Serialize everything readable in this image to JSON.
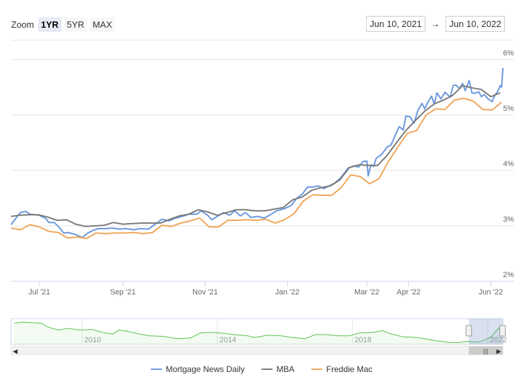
{
  "toolbar": {
    "zoom_label": "Zoom",
    "buttons": [
      "1YR",
      "5YR",
      "MAX"
    ],
    "active": "1YR"
  },
  "range": {
    "from": "Jun 10, 2021",
    "separator": "→",
    "to": "Jun 10, 2022"
  },
  "colors": {
    "mnd": "#6a97dd",
    "mba": "#7a7a7a",
    "freddie": "#f0a65a",
    "navigator": "#58c24b"
  },
  "chart_data": {
    "type": "line",
    "title": "",
    "xlabel": "",
    "ylabel": "",
    "xlim": [
      "2021-06-10",
      "2022-06-10"
    ],
    "ylim": [
      2,
      6.35
    ],
    "x_ticks": [
      {
        "date": "2021-07-01",
        "label": "Jul '21"
      },
      {
        "date": "2021-09-01",
        "label": "Sep '21"
      },
      {
        "date": "2021-11-01",
        "label": "Nov '21"
      },
      {
        "date": "2022-01-01",
        "label": "Jan '22"
      },
      {
        "date": "2022-03-01",
        "label": "Mar '22"
      },
      {
        "date": "2022-04-01",
        "label": "Apr '22"
      },
      {
        "date": "2022-06-01",
        "label": "Jun '22"
      }
    ],
    "y_ticks": [
      {
        "value": 2,
        "label": "2%"
      },
      {
        "value": 3,
        "label": "3%"
      },
      {
        "value": 4,
        "label": "4%"
      },
      {
        "value": 5,
        "label": "5%"
      },
      {
        "value": 6,
        "label": "6%"
      }
    ],
    "grid": true,
    "legend_position": "bottom",
    "series": [
      {
        "name": "Mortgage News Daily",
        "color_key": "mnd",
        "points": [
          [
            "2021-06-10",
            3.02
          ],
          [
            "2021-06-14",
            3.15
          ],
          [
            "2021-06-17",
            3.24
          ],
          [
            "2021-06-21",
            3.26
          ],
          [
            "2021-06-24",
            3.21
          ],
          [
            "2021-06-28",
            3.2
          ],
          [
            "2021-07-01",
            3.19
          ],
          [
            "2021-07-06",
            3.13
          ],
          [
            "2021-07-08",
            3.06
          ],
          [
            "2021-07-12",
            3.06
          ],
          [
            "2021-07-15",
            2.99
          ],
          [
            "2021-07-19",
            2.87
          ],
          [
            "2021-07-22",
            2.88
          ],
          [
            "2021-07-27",
            2.85
          ],
          [
            "2021-08-02",
            2.79
          ],
          [
            "2021-08-06",
            2.87
          ],
          [
            "2021-08-10",
            2.92
          ],
          [
            "2021-08-14",
            2.95
          ],
          [
            "2021-08-19",
            2.95
          ],
          [
            "2021-08-24",
            2.96
          ],
          [
            "2021-08-30",
            2.94
          ],
          [
            "2021-09-03",
            2.95
          ],
          [
            "2021-09-09",
            2.93
          ],
          [
            "2021-09-14",
            2.95
          ],
          [
            "2021-09-20",
            2.94
          ],
          [
            "2021-09-25",
            3.03
          ],
          [
            "2021-09-30",
            3.12
          ],
          [
            "2021-10-05",
            3.09
          ],
          [
            "2021-10-10",
            3.14
          ],
          [
            "2021-10-15",
            3.17
          ],
          [
            "2021-10-20",
            3.21
          ],
          [
            "2021-10-26",
            3.21
          ],
          [
            "2021-10-29",
            3.27
          ],
          [
            "2021-11-03",
            3.19
          ],
          [
            "2021-11-06",
            3.11
          ],
          [
            "2021-11-10",
            3.17
          ],
          [
            "2021-11-15",
            3.24
          ],
          [
            "2021-11-19",
            3.19
          ],
          [
            "2021-11-23",
            3.27
          ],
          [
            "2021-11-27",
            3.18
          ],
          [
            "2021-12-01",
            3.24
          ],
          [
            "2021-12-05",
            3.15
          ],
          [
            "2021-12-10",
            3.17
          ],
          [
            "2021-12-15",
            3.14
          ],
          [
            "2021-12-20",
            3.21
          ],
          [
            "2021-12-24",
            3.27
          ],
          [
            "2021-12-30",
            3.31
          ],
          [
            "2022-01-04",
            3.37
          ],
          [
            "2022-01-08",
            3.5
          ],
          [
            "2022-01-12",
            3.57
          ],
          [
            "2022-01-16",
            3.7
          ],
          [
            "2022-01-20",
            3.7
          ],
          [
            "2022-01-24",
            3.72
          ],
          [
            "2022-01-28",
            3.67
          ],
          [
            "2022-02-01",
            3.72
          ],
          [
            "2022-02-05",
            3.77
          ],
          [
            "2022-02-09",
            3.85
          ],
          [
            "2022-02-12",
            3.94
          ],
          [
            "2022-02-15",
            4.04
          ],
          [
            "2022-02-19",
            4.08
          ],
          [
            "2022-02-23",
            4.06
          ],
          [
            "2022-02-26",
            4.16
          ],
          [
            "2022-03-01",
            4.17
          ],
          [
            "2022-03-02",
            3.9
          ],
          [
            "2022-03-04",
            4.1
          ],
          [
            "2022-03-06",
            4.07
          ],
          [
            "2022-03-08",
            4.22
          ],
          [
            "2022-03-12",
            4.29
          ],
          [
            "2022-03-16",
            4.42
          ],
          [
            "2022-03-19",
            4.46
          ],
          [
            "2022-03-22",
            4.63
          ],
          [
            "2022-03-25",
            4.79
          ],
          [
            "2022-03-28",
            4.73
          ],
          [
            "2022-03-30",
            4.98
          ],
          [
            "2022-04-02",
            4.97
          ],
          [
            "2022-04-05",
            4.85
          ],
          [
            "2022-04-08",
            5.09
          ],
          [
            "2022-04-11",
            5.21
          ],
          [
            "2022-04-13",
            5.11
          ],
          [
            "2022-04-15",
            5.22
          ],
          [
            "2022-04-18",
            5.34
          ],
          [
            "2022-04-20",
            5.2
          ],
          [
            "2022-04-22",
            5.4
          ],
          [
            "2022-04-25",
            5.29
          ],
          [
            "2022-04-28",
            5.41
          ],
          [
            "2022-05-02",
            5.32
          ],
          [
            "2022-05-04",
            5.53
          ],
          [
            "2022-05-06",
            5.54
          ],
          [
            "2022-05-09",
            5.48
          ],
          [
            "2022-05-11",
            5.57
          ],
          [
            "2022-05-13",
            5.44
          ],
          [
            "2022-05-16",
            5.62
          ],
          [
            "2022-05-18",
            5.4
          ],
          [
            "2022-05-20",
            5.39
          ],
          [
            "2022-05-23",
            5.42
          ],
          [
            "2022-05-25",
            5.33
          ],
          [
            "2022-05-27",
            5.37
          ],
          [
            "2022-05-30",
            5.29
          ],
          [
            "2022-06-02",
            5.24
          ],
          [
            "2022-06-04",
            5.36
          ],
          [
            "2022-06-06",
            5.42
          ],
          [
            "2022-06-08",
            5.53
          ],
          [
            "2022-06-09",
            5.5
          ],
          [
            "2022-06-10",
            5.85
          ]
        ]
      },
      {
        "name": "MBA",
        "color_key": "mba",
        "points": [
          [
            "2021-06-10",
            3.17
          ],
          [
            "2021-06-16",
            3.19
          ],
          [
            "2021-06-23",
            3.2
          ],
          [
            "2021-06-30",
            3.2
          ],
          [
            "2021-07-07",
            3.16
          ],
          [
            "2021-07-14",
            3.1
          ],
          [
            "2021-07-21",
            3.11
          ],
          [
            "2021-07-28",
            3.03
          ],
          [
            "2021-08-04",
            2.99
          ],
          [
            "2021-08-11",
            3.0
          ],
          [
            "2021-08-18",
            3.01
          ],
          [
            "2021-08-25",
            3.06
          ],
          [
            "2021-09-01",
            3.03
          ],
          [
            "2021-09-08",
            3.04
          ],
          [
            "2021-09-15",
            3.05
          ],
          [
            "2021-09-22",
            3.05
          ],
          [
            "2021-09-29",
            3.05
          ],
          [
            "2021-10-06",
            3.12
          ],
          [
            "2021-10-13",
            3.18
          ],
          [
            "2021-10-20",
            3.21
          ],
          [
            "2021-10-27",
            3.29
          ],
          [
            "2021-11-03",
            3.25
          ],
          [
            "2021-11-10",
            3.19
          ],
          [
            "2021-11-17",
            3.24
          ],
          [
            "2021-11-24",
            3.29
          ],
          [
            "2021-12-01",
            3.29
          ],
          [
            "2021-12-08",
            3.27
          ],
          [
            "2021-12-15",
            3.27
          ],
          [
            "2021-12-22",
            3.3
          ],
          [
            "2021-12-29",
            3.33
          ],
          [
            "2022-01-05",
            3.47
          ],
          [
            "2022-01-12",
            3.52
          ],
          [
            "2022-01-19",
            3.64
          ],
          [
            "2022-01-26",
            3.69
          ],
          [
            "2022-02-02",
            3.72
          ],
          [
            "2022-02-09",
            3.83
          ],
          [
            "2022-02-16",
            4.05
          ],
          [
            "2022-02-23",
            4.1
          ],
          [
            "2022-03-02",
            4.09
          ],
          [
            "2022-03-09",
            4.09
          ],
          [
            "2022-03-16",
            4.27
          ],
          [
            "2022-03-23",
            4.5
          ],
          [
            "2022-03-30",
            4.72
          ],
          [
            "2022-04-06",
            4.9
          ],
          [
            "2022-04-13",
            5.07
          ],
          [
            "2022-04-20",
            5.2
          ],
          [
            "2022-04-27",
            5.27
          ],
          [
            "2022-05-04",
            5.36
          ],
          [
            "2022-05-11",
            5.53
          ],
          [
            "2022-05-18",
            5.49
          ],
          [
            "2022-05-25",
            5.46
          ],
          [
            "2022-06-01",
            5.33
          ],
          [
            "2022-06-08",
            5.4
          ]
        ]
      },
      {
        "name": "Freddie Mac",
        "color_key": "freddie",
        "points": [
          [
            "2021-06-10",
            2.96
          ],
          [
            "2021-06-17",
            2.93
          ],
          [
            "2021-06-24",
            3.02
          ],
          [
            "2021-07-01",
            2.98
          ],
          [
            "2021-07-08",
            2.9
          ],
          [
            "2021-07-15",
            2.88
          ],
          [
            "2021-07-22",
            2.78
          ],
          [
            "2021-07-29",
            2.8
          ],
          [
            "2021-08-05",
            2.77
          ],
          [
            "2021-08-12",
            2.87
          ],
          [
            "2021-08-19",
            2.86
          ],
          [
            "2021-08-26",
            2.87
          ],
          [
            "2021-09-02",
            2.87
          ],
          [
            "2021-09-09",
            2.88
          ],
          [
            "2021-09-16",
            2.86
          ],
          [
            "2021-09-23",
            2.88
          ],
          [
            "2021-09-30",
            3.01
          ],
          [
            "2021-10-07",
            2.99
          ],
          [
            "2021-10-14",
            3.05
          ],
          [
            "2021-10-21",
            3.09
          ],
          [
            "2021-10-28",
            3.14
          ],
          [
            "2021-11-04",
            2.98
          ],
          [
            "2021-11-11",
            2.98
          ],
          [
            "2021-11-18",
            3.1
          ],
          [
            "2021-11-25",
            3.1
          ],
          [
            "2021-12-02",
            3.11
          ],
          [
            "2021-12-09",
            3.1
          ],
          [
            "2021-12-16",
            3.12
          ],
          [
            "2021-12-23",
            3.05
          ],
          [
            "2021-12-30",
            3.11
          ],
          [
            "2022-01-06",
            3.22
          ],
          [
            "2022-01-13",
            3.45
          ],
          [
            "2022-01-20",
            3.56
          ],
          [
            "2022-01-27",
            3.55
          ],
          [
            "2022-02-03",
            3.55
          ],
          [
            "2022-02-10",
            3.69
          ],
          [
            "2022-02-17",
            3.92
          ],
          [
            "2022-02-24",
            3.89
          ],
          [
            "2022-03-03",
            3.76
          ],
          [
            "2022-03-10",
            3.85
          ],
          [
            "2022-03-17",
            4.16
          ],
          [
            "2022-03-24",
            4.42
          ],
          [
            "2022-03-31",
            4.67
          ],
          [
            "2022-04-07",
            4.72
          ],
          [
            "2022-04-14",
            5.0
          ],
          [
            "2022-04-21",
            5.11
          ],
          [
            "2022-04-28",
            5.1
          ],
          [
            "2022-05-05",
            5.27
          ],
          [
            "2022-05-12",
            5.3
          ],
          [
            "2022-05-19",
            5.25
          ],
          [
            "2022-05-26",
            5.1
          ],
          [
            "2022-06-02",
            5.09
          ],
          [
            "2022-06-09",
            5.23
          ]
        ]
      }
    ],
    "navigator": {
      "x_labels": [
        "2010",
        "2014",
        "2018",
        "2022"
      ],
      "x_label_years": [
        2010,
        2014,
        2018,
        2022
      ],
      "xlim_years": [
        2007.9,
        2022.45
      ],
      "ylim": [
        2.5,
        7
      ],
      "selected_range_years": [
        2021.44,
        2022.44
      ],
      "points": [
        [
          2008.0,
          6.2
        ],
        [
          2008.2,
          6.4
        ],
        [
          2008.5,
          6.3
        ],
        [
          2008.8,
          6.2
        ],
        [
          2009.0,
          5.5
        ],
        [
          2009.3,
          5.0
        ],
        [
          2009.6,
          5.3
        ],
        [
          2009.9,
          5.0
        ],
        [
          2010.3,
          5.1
        ],
        [
          2010.6,
          4.6
        ],
        [
          2010.9,
          4.3
        ],
        [
          2011.1,
          5.0
        ],
        [
          2011.4,
          4.7
        ],
        [
          2011.7,
          4.3
        ],
        [
          2012.0,
          4.0
        ],
        [
          2012.4,
          3.9
        ],
        [
          2012.8,
          3.5
        ],
        [
          2013.2,
          3.6
        ],
        [
          2013.5,
          4.5
        ],
        [
          2013.8,
          4.6
        ],
        [
          2014.1,
          4.5
        ],
        [
          2014.5,
          4.2
        ],
        [
          2014.9,
          4.0
        ],
        [
          2015.1,
          3.7
        ],
        [
          2015.5,
          4.1
        ],
        [
          2015.9,
          4.0
        ],
        [
          2016.2,
          3.7
        ],
        [
          2016.6,
          3.5
        ],
        [
          2016.9,
          4.2
        ],
        [
          2017.2,
          4.2
        ],
        [
          2017.6,
          4.0
        ],
        [
          2017.9,
          4.0
        ],
        [
          2018.2,
          4.5
        ],
        [
          2018.6,
          4.6
        ],
        [
          2018.9,
          4.9
        ],
        [
          2019.1,
          4.4
        ],
        [
          2019.5,
          3.8
        ],
        [
          2019.9,
          3.7
        ],
        [
          2020.2,
          3.4
        ],
        [
          2020.5,
          3.1
        ],
        [
          2020.9,
          2.8
        ],
        [
          2021.1,
          2.8
        ],
        [
          2021.4,
          3.0
        ],
        [
          2021.7,
          2.9
        ],
        [
          2021.9,
          3.2
        ],
        [
          2022.1,
          3.8
        ],
        [
          2022.3,
          5.2
        ],
        [
          2022.44,
          5.85
        ]
      ]
    }
  }
}
